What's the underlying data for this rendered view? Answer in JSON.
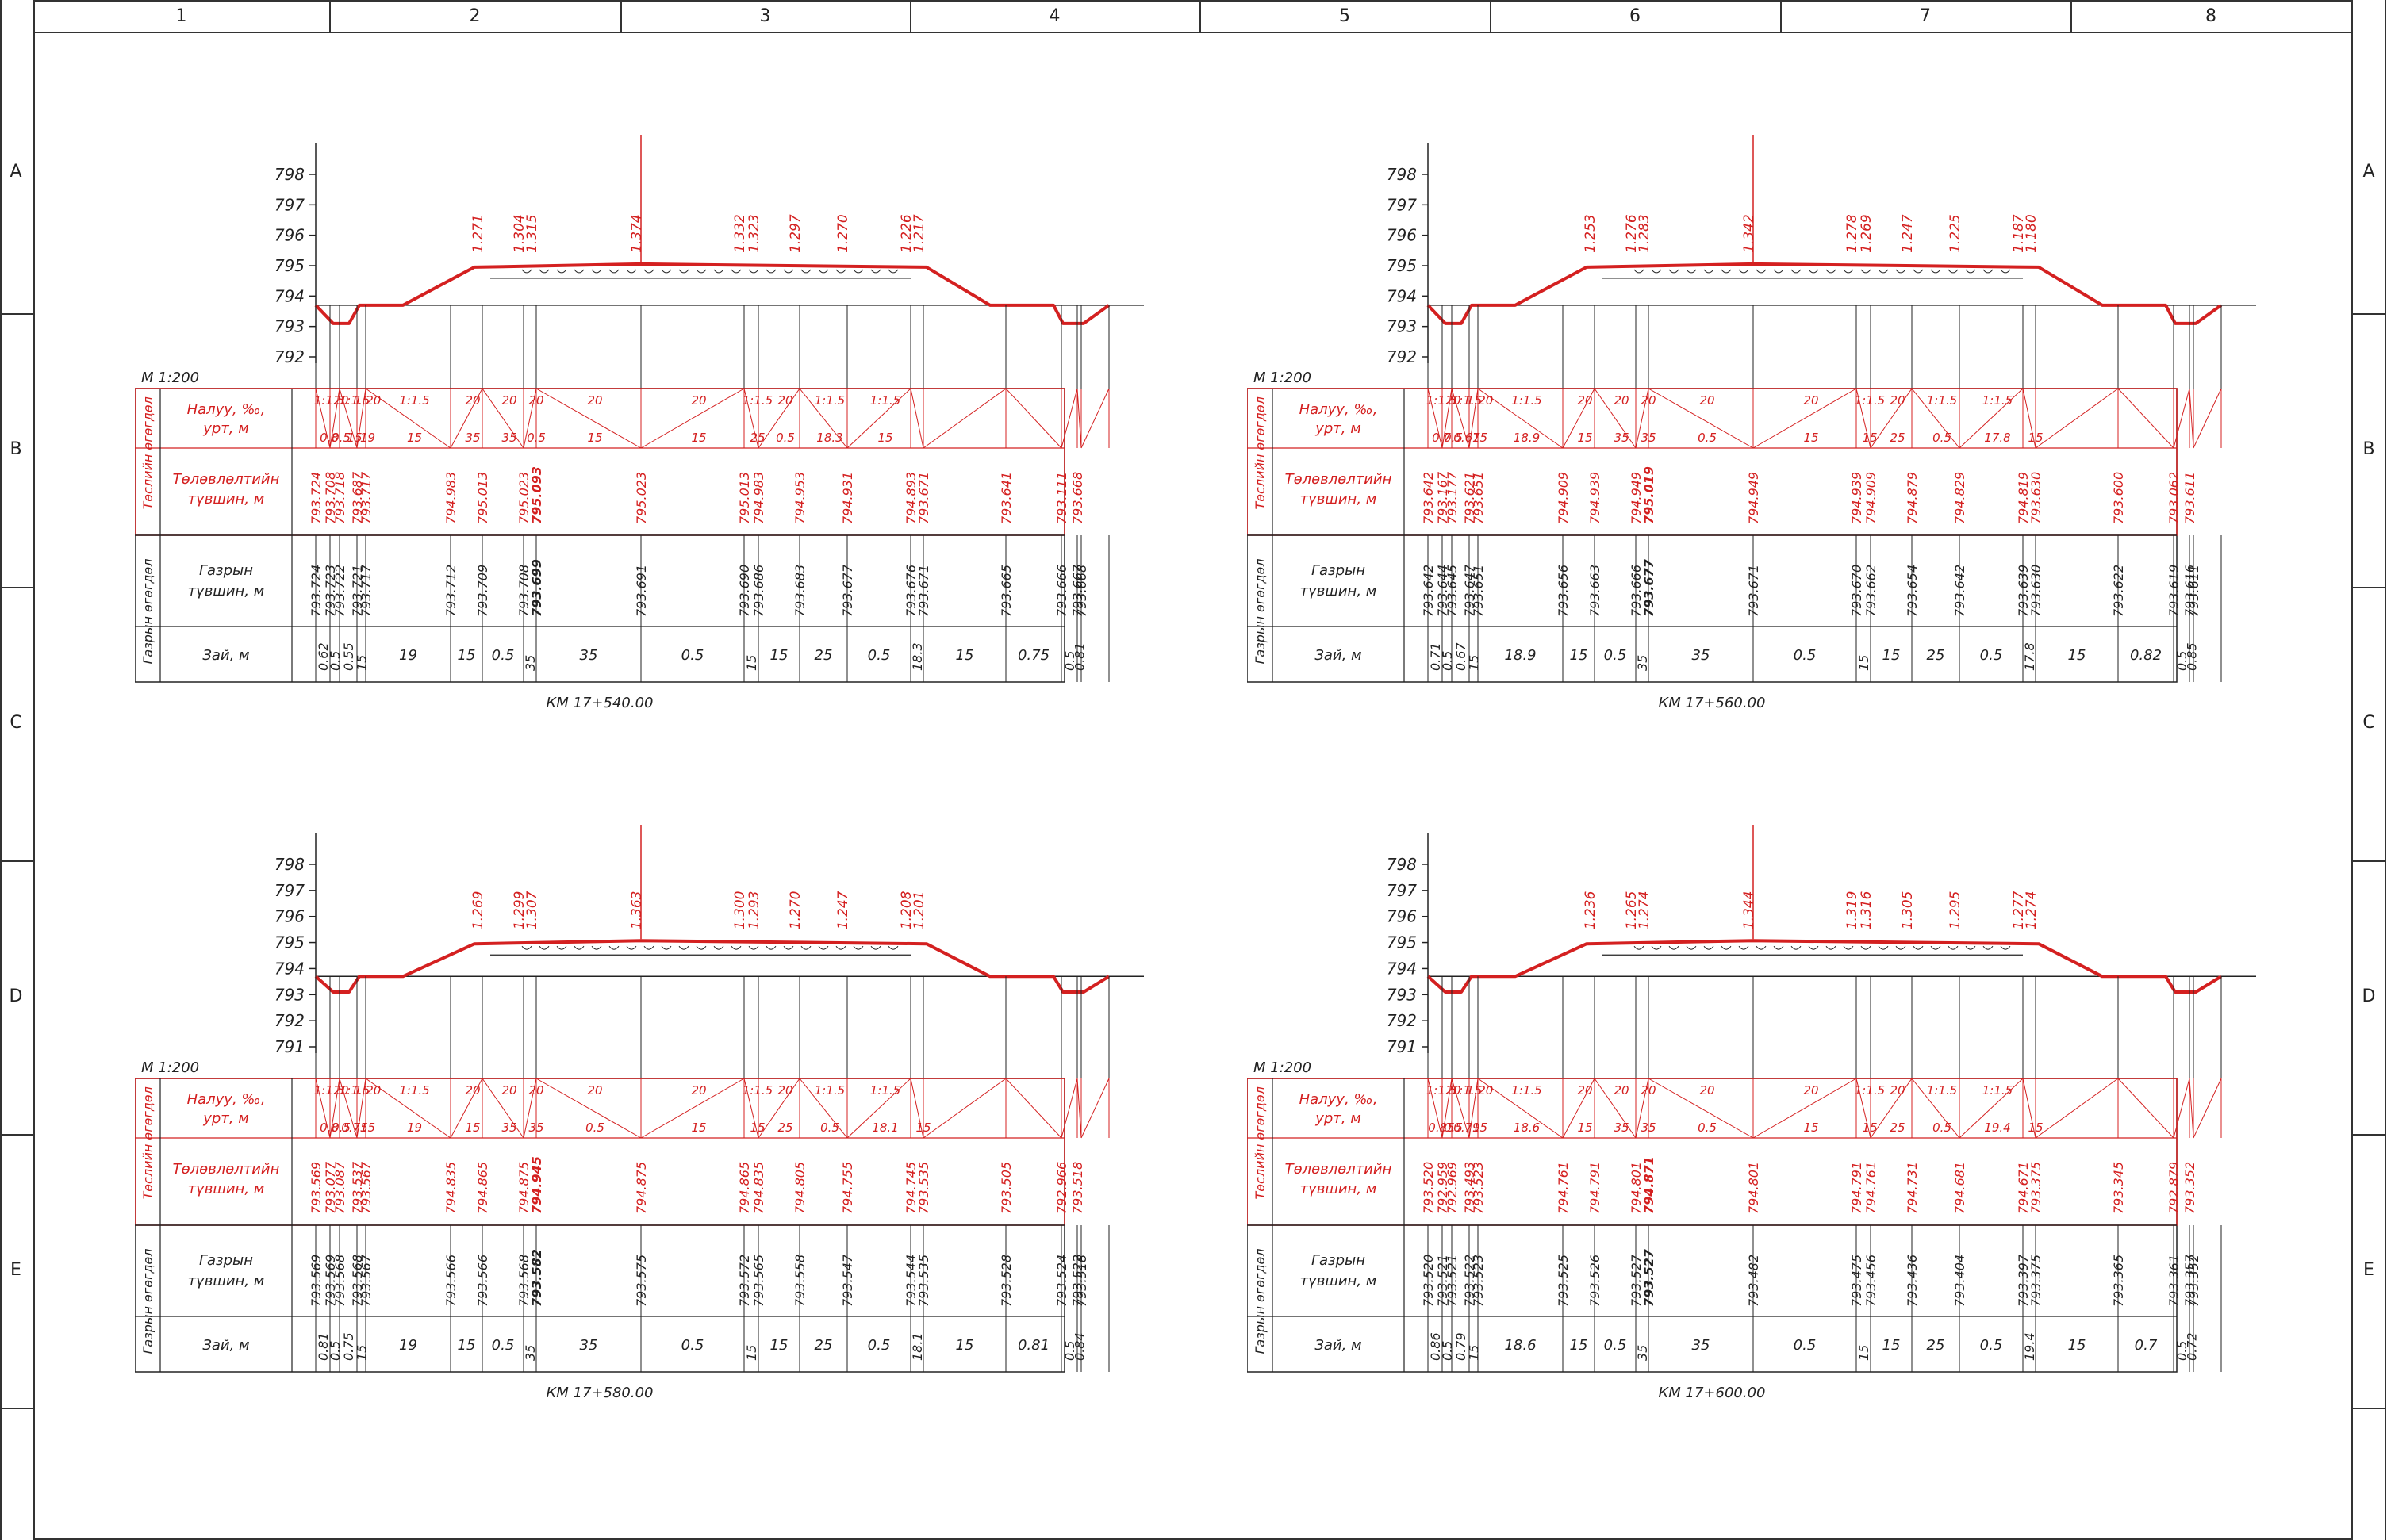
{
  "sheet": {
    "columns": [
      "1",
      "2",
      "3",
      "4",
      "5",
      "6",
      "7",
      "8"
    ],
    "rows": [
      "A",
      "B",
      "C",
      "D",
      "E"
    ]
  },
  "labels": {
    "slope_label": "Налуу, ‰,",
    "slope_label_2": "урт, м",
    "design_label": "Төлөвлөлтийн",
    "design_label_2": "түвшин, м",
    "ground_label": "Газрын",
    "ground_label_2": "түвшин, м",
    "distance_label": "Зай, м",
    "design_group": "Төслийн өгөгдөл",
    "ground_group": "Газрын өгөгдөл"
  },
  "colors": {
    "design": "#d42020",
    "ground": "#222222",
    "frame": "#333333"
  },
  "chart_data": [
    {
      "type": "cross-section",
      "scale": "M 1:200",
      "station": "КМ 17+540.00",
      "y_ticks": [
        "798",
        "797",
        "796",
        "795",
        "794",
        "793",
        "792"
      ],
      "ylim": [
        792,
        798
      ],
      "slope_top": [
        "1:1.5",
        "20",
        "1:1.5",
        "1:20",
        "1:1.5",
        "20",
        "20",
        "20",
        "20",
        "20",
        "1:1.5",
        "20",
        "1:1.5",
        "1:1.5"
      ],
      "slope_bot": [
        "0.8",
        "0.5",
        "15",
        "19",
        "15",
        "35",
        "35",
        "0.5",
        "15",
        "15",
        "25",
        "0.5",
        "18.3",
        "15"
      ],
      "design_levels": [
        "793.724",
        "793.708",
        "793.718",
        "793.687",
        "793.717",
        "794.983",
        "795.013",
        "795.023",
        "795.093",
        "795.023",
        "795.013",
        "794.983",
        "794.953",
        "794.931",
        "794.893",
        "793.671",
        "793.641",
        "793.111",
        "793.668"
      ],
      "ground_levels": [
        "793.724",
        "793.723",
        "793.722",
        "793.721",
        "793.717",
        "793.712",
        "793.709",
        "793.708",
        "793.699",
        "793.691",
        "793.690",
        "793.686",
        "793.683",
        "793.677",
        "793.676",
        "793.671",
        "793.665",
        "793.666",
        "793.667",
        "793.668"
      ],
      "distances": [
        "0.62",
        "0.5",
        "0.55",
        "15",
        "19",
        "15",
        "0.5",
        "35",
        "35",
        "0.5",
        "15",
        "15",
        "25",
        "0.5",
        "18.3",
        "15",
        "0.75",
        "0.5",
        "0.81"
      ],
      "crown_text": [
        "1.271",
        "1.304",
        "1.315",
        "1.374",
        "1.332",
        "1.323",
        "1.297",
        "1.270",
        "1.226",
        "1.217"
      ]
    },
    {
      "type": "cross-section",
      "scale": "M 1:200",
      "station": "КМ 17+560.00",
      "y_ticks": [
        "798",
        "797",
        "796",
        "795",
        "794",
        "793",
        "792"
      ],
      "ylim": [
        792,
        798
      ],
      "slope_top": [
        "1:1.5",
        "20",
        "1:1.5",
        "1:20",
        "1:1.5",
        "20",
        "20",
        "20",
        "20",
        "20",
        "1:1.5",
        "20",
        "1:1.5",
        "1:1.5"
      ],
      "slope_bot": [
        "0.7",
        "0.5",
        "0.67",
        "15",
        "18.9",
        "15",
        "35",
        "35",
        "0.5",
        "15",
        "15",
        "25",
        "0.5",
        "17.8",
        "15"
      ],
      "design_levels": [
        "793.642",
        "793.167",
        "793.177",
        "793.621",
        "793.651",
        "794.909",
        "794.939",
        "794.949",
        "795.019",
        "794.949",
        "794.939",
        "794.909",
        "794.879",
        "794.829",
        "794.819",
        "793.630",
        "793.600",
        "793.062",
        "793.611"
      ],
      "ground_levels": [
        "793.642",
        "793.644",
        "793.645",
        "793.647",
        "793.651",
        "793.656",
        "793.663",
        "793.666",
        "793.677",
        "793.671",
        "793.670",
        "793.662",
        "793.654",
        "793.642",
        "793.639",
        "793.630",
        "793.622",
        "793.619",
        "793.616",
        "793.611"
      ],
      "distances": [
        "0.71",
        "0.5",
        "0.67",
        "15",
        "18.9",
        "15",
        "0.5",
        "35",
        "35",
        "0.5",
        "15",
        "15",
        "25",
        "0.5",
        "17.8",
        "15",
        "0.82",
        "0.5",
        "0.85"
      ],
      "crown_text": [
        "1.253",
        "1.276",
        "1.283",
        "1.342",
        "1.278",
        "1.269",
        "1.247",
        "1.225",
        "1.187",
        "1.180"
      ]
    },
    {
      "type": "cross-section",
      "scale": "M 1:200",
      "station": "КМ 17+580.00",
      "y_ticks": [
        "798",
        "797",
        "796",
        "795",
        "794",
        "793",
        "792",
        "791"
      ],
      "ylim": [
        791,
        798
      ],
      "slope_top": [
        "1:1.5",
        "20",
        "1:1.5",
        "1:20",
        "1:1.5",
        "20",
        "20",
        "20",
        "20",
        "20",
        "1:1.5",
        "20",
        "1:1.5",
        "1:1.5"
      ],
      "slope_bot": [
        "0.8",
        "0.5",
        "0.75",
        "15",
        "19",
        "15",
        "35",
        "35",
        "0.5",
        "15",
        "15",
        "25",
        "0.5",
        "18.1",
        "15"
      ],
      "design_levels": [
        "793.569",
        "793.077",
        "793.087",
        "793.537",
        "793.567",
        "794.835",
        "794.865",
        "794.875",
        "794.945",
        "794.875",
        "794.865",
        "794.835",
        "794.805",
        "794.755",
        "794.745",
        "793.535",
        "793.505",
        "792.966",
        "793.518"
      ],
      "ground_levels": [
        "793.569",
        "793.569",
        "793.568",
        "793.568",
        "793.567",
        "793.566",
        "793.566",
        "793.568",
        "793.582",
        "793.575",
        "793.572",
        "793.565",
        "793.558",
        "793.547",
        "793.544",
        "793.535",
        "793.528",
        "793.524",
        "793.522",
        "793.518"
      ],
      "distances": [
        "0.81",
        "0.5",
        "0.75",
        "15",
        "19",
        "15",
        "0.5",
        "35",
        "35",
        "0.5",
        "15",
        "15",
        "25",
        "0.5",
        "18.1",
        "15",
        "0.81",
        "0.5",
        "0.84"
      ],
      "crown_text": [
        "1.269",
        "1.299",
        "1.307",
        "1.363",
        "1.300",
        "1.293",
        "1.270",
        "1.247",
        "1.208",
        "1.201"
      ]
    },
    {
      "type": "cross-section",
      "scale": "M 1:200",
      "station": "КМ 17+600.00",
      "y_ticks": [
        "798",
        "797",
        "796",
        "795",
        "794",
        "793",
        "792",
        "791"
      ],
      "ylim": [
        791,
        798
      ],
      "slope_top": [
        "1:1.5",
        "20",
        "1:1.5",
        "1:20",
        "1:1.5",
        "20",
        "20",
        "20",
        "20",
        "20",
        "1:1.5",
        "20",
        "1:1.5",
        "1:1.5"
      ],
      "slope_bot": [
        "0.85",
        "0.5",
        "0.79",
        "15",
        "18.6",
        "15",
        "35",
        "35",
        "0.5",
        "15",
        "15",
        "25",
        "0.5",
        "19.4",
        "15"
      ],
      "design_levels": [
        "793.520",
        "792.959",
        "792.969",
        "793.493",
        "793.523",
        "794.761",
        "794.791",
        "794.801",
        "794.871",
        "794.801",
        "794.791",
        "794.761",
        "794.731",
        "794.681",
        "794.671",
        "793.375",
        "793.345",
        "792.879",
        "793.352"
      ],
      "ground_levels": [
        "793.520",
        "793.521",
        "793.521",
        "793.522",
        "793.523",
        "793.525",
        "793.526",
        "793.527",
        "793.527",
        "793.482",
        "793.475",
        "793.456",
        "793.436",
        "793.404",
        "793.397",
        "793.375",
        "793.365",
        "793.361",
        "793.357",
        "793.352"
      ],
      "distances": [
        "0.86",
        "0.5",
        "0.79",
        "15",
        "18.6",
        "15",
        "0.5",
        "35",
        "35",
        "0.5",
        "15",
        "15",
        "25",
        "0.5",
        "19.4",
        "15",
        "0.7",
        "0.5",
        "0.72"
      ],
      "crown_text": [
        "1.236",
        "1.265",
        "1.274",
        "1.344",
        "1.319",
        "1.316",
        "1.305",
        "1.295",
        "1.277",
        "1.274"
      ]
    }
  ]
}
